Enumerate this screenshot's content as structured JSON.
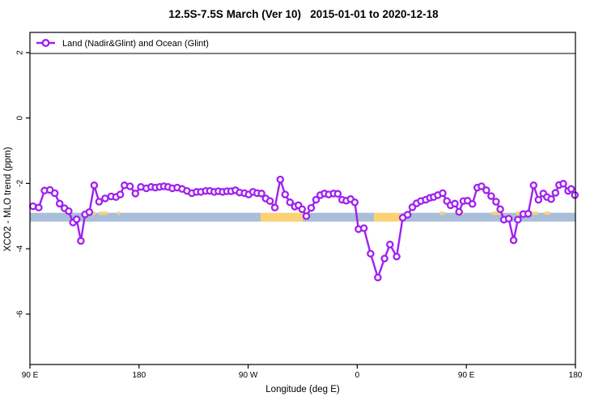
{
  "title": "12.5S-7.5S March (Ver 10)   2015-01-01 to 2020-12-18",
  "legend": {
    "label": "Land (Nadir&Glint) and Ocean (Glint)"
  },
  "axes": {
    "x_label": "Longitude (deg E)",
    "y_label": "XCO2 - MLO trend (ppm)",
    "x_ticks": [
      {
        "pos": 90,
        "label": "90 E"
      },
      {
        "pos": 180,
        "label": "180"
      },
      {
        "pos": 270,
        "label": "90 W"
      },
      {
        "pos": 360,
        "label": "0"
      },
      {
        "pos": 450,
        "label": "90 E"
      },
      {
        "pos": 540,
        "label": "180"
      }
    ],
    "y_ticks": [
      2,
      0,
      -2,
      -4,
      -6
    ]
  },
  "colors": {
    "series_purple": "#A020F0",
    "marker_fill": "#FFFFFF",
    "ocean_band_blue": "#A8BED9",
    "land_band_orange": "#FBD175",
    "axis_black": "#000000"
  },
  "chart_data": {
    "type": "line",
    "title": "12.5S-7.5S March (Ver 10)   2015-01-01 to 2020-12-18",
    "xlabel": "Longitude (deg E)",
    "ylabel": "XCO2 - MLO trend (ppm)",
    "x_axis_note": "axis position runs 90E -> 180 -> 90W -> 0 -> 90E -> 180 (450 deg span, positions 90..540)",
    "xlim": [
      90,
      540
    ],
    "ylim": [
      -7.5,
      2.6
    ],
    "grid": false,
    "legend_position": "top-left strip inside plot box",
    "series": [
      {
        "name": "Land (Nadir&Glint) and Ocean (Glint)",
        "marker": "open-circle",
        "points": [
          [
            92.5,
            -2.7
          ],
          [
            97.3,
            -2.74
          ],
          [
            102.0,
            -2.22
          ],
          [
            106.5,
            -2.2
          ],
          [
            110.5,
            -2.3
          ],
          [
            114.5,
            -2.62
          ],
          [
            118.5,
            -2.76
          ],
          [
            122.0,
            -2.85
          ],
          [
            125.5,
            -3.2
          ],
          [
            128.5,
            -3.1
          ],
          [
            132.0,
            -3.76
          ],
          [
            135.5,
            -2.95
          ],
          [
            139.0,
            -2.88
          ],
          [
            143.0,
            -2.06
          ],
          [
            147.0,
            -2.56
          ],
          [
            152.0,
            -2.46
          ],
          [
            157.0,
            -2.4
          ],
          [
            161.0,
            -2.42
          ],
          [
            164.5,
            -2.34
          ],
          [
            168.0,
            -2.06
          ],
          [
            172.5,
            -2.09
          ],
          [
            177.0,
            -2.31
          ],
          [
            181.5,
            -2.11
          ],
          [
            186.0,
            -2.15
          ],
          [
            190.0,
            -2.11
          ],
          [
            193.5,
            -2.13
          ],
          [
            197.0,
            -2.11
          ],
          [
            200.5,
            -2.09
          ],
          [
            204.0,
            -2.11
          ],
          [
            207.5,
            -2.15
          ],
          [
            211.5,
            -2.13
          ],
          [
            215.5,
            -2.17
          ],
          [
            219.5,
            -2.23
          ],
          [
            223.5,
            -2.3
          ],
          [
            227.5,
            -2.26
          ],
          [
            231.0,
            -2.26
          ],
          [
            235.0,
            -2.23
          ],
          [
            238.5,
            -2.23
          ],
          [
            242.0,
            -2.26
          ],
          [
            245.5,
            -2.24
          ],
          [
            249.0,
            -2.26
          ],
          [
            252.5,
            -2.24
          ],
          [
            256.0,
            -2.24
          ],
          [
            259.5,
            -2.21
          ],
          [
            263.0,
            -2.28
          ],
          [
            267.0,
            -2.3
          ],
          [
            270.5,
            -2.34
          ],
          [
            274.0,
            -2.26
          ],
          [
            277.5,
            -2.3
          ],
          [
            281.0,
            -2.31
          ],
          [
            284.5,
            -2.46
          ],
          [
            288.0,
            -2.54
          ],
          [
            292.0,
            -2.74
          ],
          [
            296.5,
            -1.88
          ],
          [
            300.5,
            -2.34
          ],
          [
            304.5,
            -2.58
          ],
          [
            308.5,
            -2.71
          ],
          [
            311.5,
            -2.67
          ],
          [
            314.5,
            -2.79
          ],
          [
            318.0,
            -3.0
          ],
          [
            322.0,
            -2.75
          ],
          [
            326.0,
            -2.5
          ],
          [
            329.5,
            -2.36
          ],
          [
            333.0,
            -2.31
          ],
          [
            336.5,
            -2.34
          ],
          [
            340.5,
            -2.31
          ],
          [
            344.0,
            -2.32
          ],
          [
            347.5,
            -2.5
          ],
          [
            351.0,
            -2.53
          ],
          [
            354.5,
            -2.48
          ],
          [
            358.0,
            -2.58
          ],
          [
            361.0,
            -3.4
          ],
          [
            365.5,
            -3.37
          ],
          [
            371.0,
            -4.15
          ],
          [
            377.0,
            -4.88
          ],
          [
            382.5,
            -4.3
          ],
          [
            387.0,
            -3.87
          ],
          [
            392.5,
            -4.24
          ],
          [
            397.5,
            -3.05
          ],
          [
            401.5,
            -2.96
          ],
          [
            405.5,
            -2.73
          ],
          [
            409.0,
            -2.61
          ],
          [
            412.5,
            -2.54
          ],
          [
            416.5,
            -2.5
          ],
          [
            420.0,
            -2.44
          ],
          [
            423.0,
            -2.42
          ],
          [
            426.5,
            -2.36
          ],
          [
            430.5,
            -2.3
          ],
          [
            434.0,
            -2.54
          ],
          [
            437.0,
            -2.67
          ],
          [
            440.5,
            -2.62
          ],
          [
            444.0,
            -2.87
          ],
          [
            447.5,
            -2.54
          ],
          [
            451.0,
            -2.53
          ],
          [
            455.0,
            -2.63
          ],
          [
            459.0,
            -2.13
          ],
          [
            462.5,
            -2.09
          ],
          [
            466.5,
            -2.21
          ],
          [
            470.5,
            -2.39
          ],
          [
            474.5,
            -2.56
          ],
          [
            478.0,
            -2.79
          ],
          [
            481.0,
            -3.11
          ],
          [
            485.0,
            -3.08
          ],
          [
            489.0,
            -3.74
          ],
          [
            492.5,
            -3.11
          ],
          [
            497.0,
            -2.94
          ],
          [
            501.0,
            -2.93
          ],
          [
            505.5,
            -2.06
          ],
          [
            509.5,
            -2.5
          ],
          [
            513.5,
            -2.31
          ],
          [
            516.5,
            -2.42
          ],
          [
            520.0,
            -2.48
          ],
          [
            523.5,
            -2.29
          ],
          [
            526.5,
            -2.05
          ],
          [
            530.0,
            -2.01
          ],
          [
            534.0,
            -2.23
          ],
          [
            536.5,
            -2.17
          ],
          [
            539.5,
            -2.36
          ]
        ]
      }
    ],
    "surface_band": {
      "description": "horizontal land/ocean strip centered near y = -3 ppm; blue = ocean, orange = land",
      "value_top": -2.9,
      "value_bottom": -3.17,
      "ocean_segments": [
        [
          90,
          280.3
        ],
        [
          315,
          373.8
        ],
        [
          396,
          540
        ]
      ],
      "land_segments": [
        [
          280.3,
          315
        ],
        [
          373.8,
          396
        ]
      ],
      "land_specks": [
        [
          140,
          144
        ],
        [
          147,
          154
        ],
        [
          162,
          164
        ],
        [
          428,
          432
        ],
        [
          445,
          448
        ],
        [
          471,
          478
        ],
        [
          491,
          509
        ],
        [
          514.5,
          519
        ]
      ]
    }
  }
}
